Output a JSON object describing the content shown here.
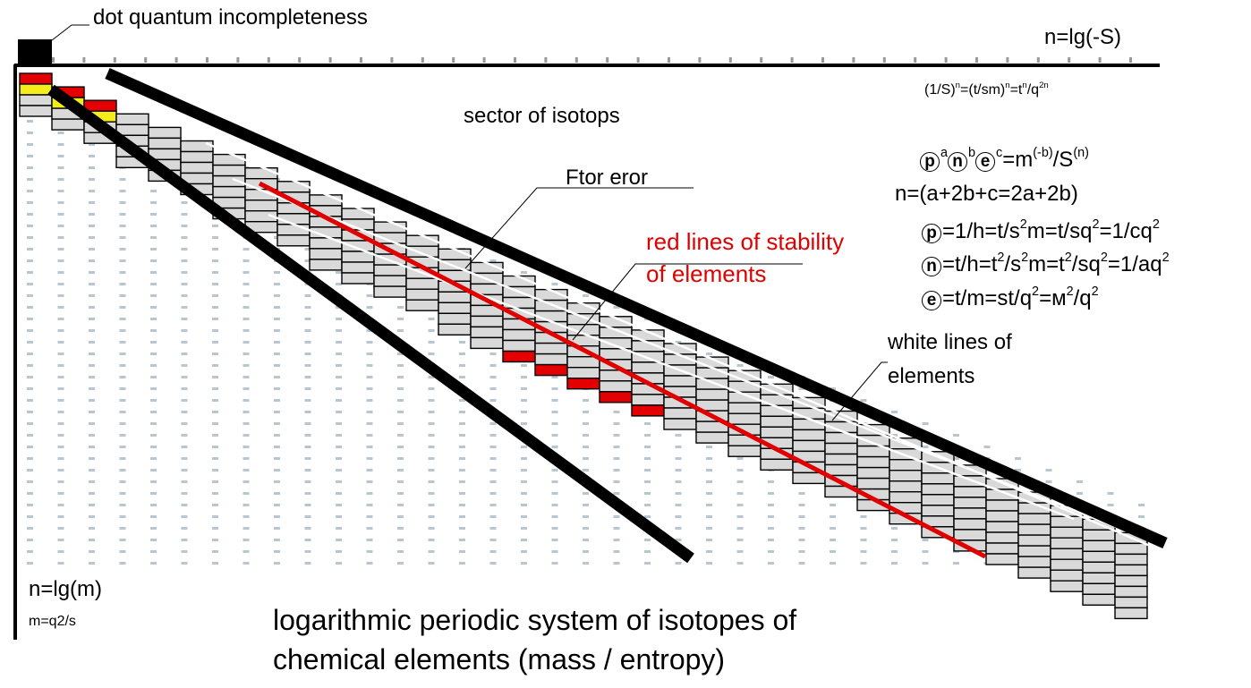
{
  "labels": {
    "dot_quantum": "dot quantum incompleteness",
    "n_entropy": "n=lg(-S)",
    "n_mass": "n=lg(m)",
    "m_def": "m=q2/s",
    "sector": "sector of isotops",
    "ftor": "Ftor eror",
    "red_lines_1": "red lines of stability",
    "red_lines_2": "of elements",
    "white_lines_1": "white lines of",
    "white_lines_2": "elements",
    "title_1": "logarithmic periodic system of isotopes of",
    "title_2": "chemical elements (mass / entropy)"
  },
  "formulas": {
    "inv_s": {
      "a": "(1/S)",
      "a_sup": "n",
      "b": "=(t/sm)",
      "b_sup": "n",
      "c": "=t",
      "c_sup": "n",
      "d": "/q",
      "d_sup": "2n"
    },
    "pne": {
      "p": "p",
      "p_sup": "a",
      "n": "n",
      "n_sup": "b",
      "e": "e",
      "e_sup": "c",
      "rest": "=m",
      "rest_sup": "(-b)",
      "rest2": "/S",
      "rest2_sup": "(n)"
    },
    "n_sum": "n=(a+2b+c=2a+2b)",
    "p_eq": {
      "sym": "p",
      "a": "=1/h=t/s",
      "a_sup": "2",
      "b": "m=t/sq",
      "b_sup": "2",
      "c": "=1/cq",
      "c_sup": "2"
    },
    "n_eq": {
      "sym": "n",
      "a": "=t/h=t",
      "a_sup": "2",
      "b": "/s",
      "b_sup": "2",
      "c": "m=t",
      "c_sup": "2",
      "d": "/sq",
      "d_sup": "2",
      "e": "=1/aq",
      "e_sup": "2"
    },
    "e_eq": {
      "sym": "e",
      "a": "=t/m=st/q",
      "a_sup": "2",
      "b": "=м",
      "b_sup": "2",
      "c": "/q",
      "c_sup": "2"
    }
  },
  "colors": {
    "black_band": "#000000",
    "red_line": "#e00000",
    "cell_fill": "#d9d9d9",
    "cell_red": "#e40000",
    "cell_yellow": "#f3ee1a",
    "background": "#ffffff"
  }
}
